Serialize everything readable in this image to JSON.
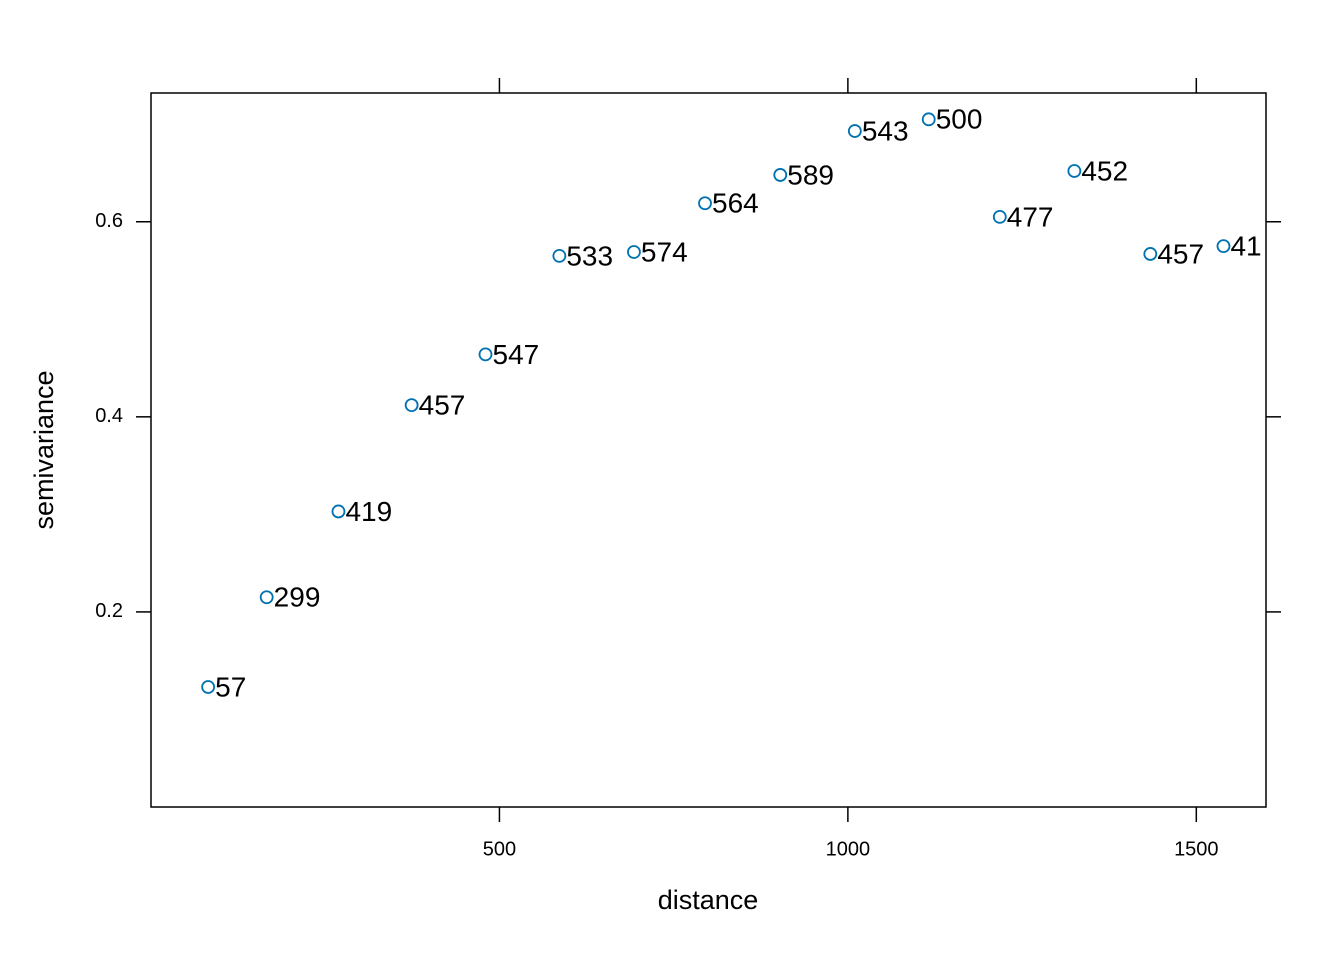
{
  "chart_data": {
    "type": "scatter",
    "x_label": "distance",
    "y_label": "semivariance",
    "x": [
      82,
      166,
      269,
      374,
      480,
      586,
      693,
      795,
      903,
      1010,
      1116,
      1218,
      1325,
      1434,
      1539
    ],
    "values": [
      0.123,
      0.215,
      0.303,
      0.412,
      0.464,
      0.565,
      0.569,
      0.619,
      0.648,
      0.693,
      0.705,
      0.605,
      0.652,
      0.567,
      0.575
    ],
    "np": [
      57,
      299,
      419,
      457,
      547,
      533,
      574,
      564,
      589,
      543,
      500,
      477,
      452,
      457,
      41
    ],
    "color": "#0072b2",
    "xlim": [
      0,
      1600
    ],
    "xticks": [
      500,
      1000,
      1500
    ],
    "ylim": [
      0,
      0.732
    ],
    "yticks": [
      0.2,
      0.4,
      0.6
    ]
  }
}
